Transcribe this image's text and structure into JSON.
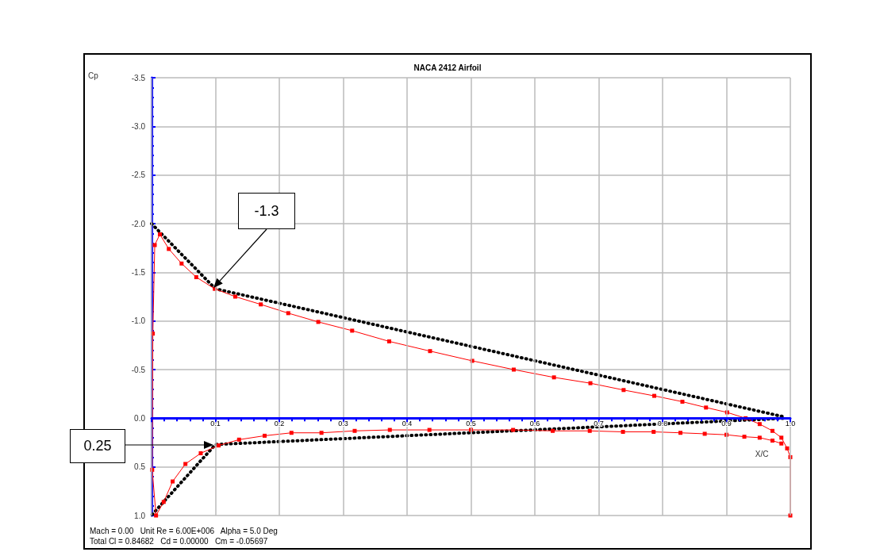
{
  "chart_data": {
    "type": "line",
    "title": "NACA 2412 Airfoil",
    "xlabel": "X/C",
    "ylabel": "Cp",
    "xlim": [
      0,
      1
    ],
    "xticks": [
      0.1,
      0.2,
      0.3,
      0.4,
      0.5,
      0.6,
      0.7,
      0.8,
      0.9,
      {
        "value": 1,
        "label": "1.0"
      }
    ],
    "ylim": [
      1,
      -3.5
    ],
    "yticks": [
      {
        "value": -3.5,
        "label": "-3.5"
      },
      {
        "value": -3,
        "label": "-3.0"
      },
      {
        "value": -2.5,
        "label": "-2.5"
      },
      {
        "value": -2,
        "label": "-2.0"
      },
      {
        "value": -1.5,
        "label": "-1.5"
      },
      {
        "value": -1,
        "label": "-1.0"
      },
      {
        "value": -0.5,
        "label": "-0.5"
      },
      {
        "value": 0,
        "label": "0.0"
      },
      {
        "value": 0.5,
        "label": "0.5"
      },
      {
        "value": 1,
        "label": "1.0"
      }
    ],
    "grid": true,
    "series": [
      {
        "color": "#ff0000",
        "marker": "square",
        "line_style": "solid",
        "x": [
          0.986,
          0.972,
          0.952,
          0.928,
          0.9,
          0.866,
          0.828,
          0.786,
          0.738,
          0.686,
          0.628,
          0.566,
          0.5,
          0.435,
          0.373,
          0.318,
          0.266,
          0.219,
          0.177,
          0.137,
          0.105,
          0.077,
          0.053,
          0.033,
          0.019,
          0.007,
          0.001,
          0.002,
          0.005,
          0.013,
          0.027,
          0.047,
          0.07,
          0.099,
          0.131,
          0.171,
          0.214,
          0.261,
          0.314,
          0.372,
          0.436,
          0.502,
          0.567,
          0.63,
          0.687,
          0.739,
          0.787,
          0.831,
          0.868,
          0.901,
          0.93,
          0.952,
          0.972,
          0.986,
          0.995,
          1,
          1
        ],
        "values": [
          0.26,
          0.23,
          0.2,
          0.19,
          0.17,
          0.16,
          0.15,
          0.14,
          0.14,
          0.13,
          0.13,
          0.12,
          0.12,
          0.12,
          0.12,
          0.13,
          0.15,
          0.15,
          0.18,
          0.22,
          0.28,
          0.36,
          0.47,
          0.65,
          0.86,
          1.0,
          0.53,
          -0.87,
          -1.78,
          -1.89,
          -1.74,
          -1.59,
          -1.45,
          -1.33,
          -1.25,
          -1.17,
          -1.08,
          -0.99,
          -0.9,
          -0.79,
          -0.69,
          -0.59,
          -0.5,
          -0.42,
          -0.36,
          -0.29,
          -0.23,
          -0.17,
          -0.11,
          -0.06,
          0.0,
          0.06,
          0.13,
          0.2,
          0.31,
          0.4,
          1.0
        ]
      },
      {
        "color": "#000000",
        "marker": "none",
        "line_style": "dotted",
        "x": [
          0,
          0.1,
          0.993
        ],
        "values": [
          -2.0,
          -1.33,
          -0.01
        ]
      },
      {
        "color": "#000000",
        "marker": "none",
        "line_style": "dotted",
        "x": [
          0.001,
          0.1,
          0.993
        ],
        "values": [
          0.99,
          0.27,
          0.0
        ]
      }
    ],
    "annotations": [
      "-1.3",
      "0.25",
      "Mach = 0.00   Unit Re = 6.00E+006   Alpha = 5.0 Deg",
      "Total Cl = 0.84682   Cd = 0.00000   Cm = -0.05697"
    ]
  }
}
